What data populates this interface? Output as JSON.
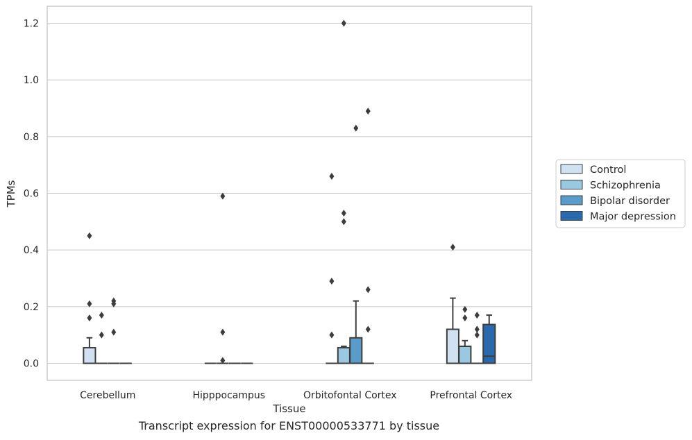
{
  "chart_data": {
    "type": "box",
    "title": "Transcript expression for ENST00000533771 by tissue",
    "xlabel": "Tissue",
    "ylabel": "TPMs",
    "ylim": [
      -0.06,
      1.26
    ],
    "yticks": [
      0.0,
      0.2,
      0.4,
      0.6,
      0.8,
      1.0,
      1.2
    ],
    "ytick_labels": [
      "0.0",
      "0.2",
      "0.4",
      "0.6",
      "0.8",
      "1.0",
      "1.2"
    ],
    "grid": "horizontal",
    "legend_placement": "right",
    "categories": [
      "Cerebellum",
      "Hipppocampus",
      "Orbitofontal Cortex",
      "Prefrontal Cortex"
    ],
    "series": [
      {
        "name": "Control",
        "color": "#d0e1f2",
        "boxes": [
          {
            "q1": 0.0,
            "median": 0.0,
            "q3": 0.055,
            "whisker_low": 0.0,
            "whisker_high": 0.09,
            "outliers": [
              0.45,
              0.21,
              0.16
            ]
          },
          {
            "q1": 0.0,
            "median": 0.0,
            "q3": 0.0,
            "whisker_low": 0.0,
            "whisker_high": 0.0,
            "outliers": []
          },
          {
            "q1": 0.0,
            "median": 0.0,
            "q3": 0.0,
            "whisker_low": 0.0,
            "whisker_high": 0.0,
            "outliers": [
              0.66,
              0.29,
              0.1
            ]
          },
          {
            "q1": 0.0,
            "median": 0.0,
            "q3": 0.12,
            "whisker_low": 0.0,
            "whisker_high": 0.23,
            "outliers": [
              0.41
            ]
          }
        ]
      },
      {
        "name": "Schizophrenia",
        "color": "#9ac8e0",
        "boxes": [
          {
            "q1": 0.0,
            "median": 0.0,
            "q3": 0.0,
            "whisker_low": 0.0,
            "whisker_high": 0.0,
            "outliers": [
              0.17,
              0.1
            ]
          },
          {
            "q1": 0.0,
            "median": 0.0,
            "q3": 0.0,
            "whisker_low": 0.0,
            "whisker_high": 0.0,
            "outliers": [
              0.59,
              0.11,
              0.01
            ]
          },
          {
            "q1": 0.0,
            "median": 0.0,
            "q3": 0.055,
            "whisker_low": 0.0,
            "whisker_high": 0.06,
            "outliers": [
              1.2,
              0.53,
              0.5
            ]
          },
          {
            "q1": 0.0,
            "median": 0.0,
            "q3": 0.06,
            "whisker_low": 0.0,
            "whisker_high": 0.08,
            "outliers": [
              0.19,
              0.16
            ]
          }
        ]
      },
      {
        "name": "Bipolar disorder",
        "color": "#5b9bc9",
        "boxes": [
          {
            "q1": 0.0,
            "median": 0.0,
            "q3": 0.0,
            "whisker_low": 0.0,
            "whisker_high": 0.0,
            "outliers": [
              0.22,
              0.21,
              0.11
            ]
          },
          {
            "q1": 0.0,
            "median": 0.0,
            "q3": 0.0,
            "whisker_low": 0.0,
            "whisker_high": 0.0,
            "outliers": []
          },
          {
            "q1": 0.0,
            "median": 0.0,
            "q3": 0.09,
            "whisker_low": 0.0,
            "whisker_high": 0.22,
            "outliers": [
              0.83
            ]
          },
          {
            "q1": 0.0,
            "median": 0.0,
            "q3": 0.0,
            "whisker_low": 0.0,
            "whisker_high": 0.0,
            "outliers": [
              0.17,
              0.12,
              0.1
            ]
          }
        ]
      },
      {
        "name": "Major depression",
        "color": "#2a69ac",
        "boxes": [
          {
            "q1": 0.0,
            "median": 0.0,
            "q3": 0.0,
            "whisker_low": 0.0,
            "whisker_high": 0.0,
            "outliers": []
          },
          {
            "q1": 0.0,
            "median": 0.0,
            "q3": 0.0,
            "whisker_low": 0.0,
            "whisker_high": 0.0,
            "outliers": []
          },
          {
            "q1": 0.0,
            "median": 0.0,
            "q3": 0.0,
            "whisker_low": 0.0,
            "whisker_high": 0.0,
            "outliers": [
              0.89,
              0.26,
              0.12
            ]
          },
          {
            "q1": 0.0,
            "median": 0.025,
            "q3": 0.137,
            "whisker_low": 0.0,
            "whisker_high": 0.17,
            "outliers": []
          }
        ]
      }
    ]
  }
}
